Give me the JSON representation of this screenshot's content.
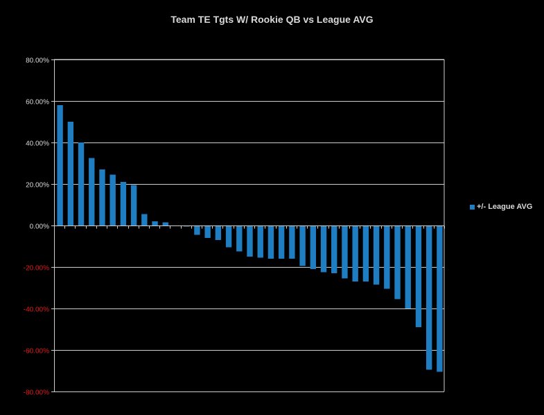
{
  "chart_data": {
    "type": "bar",
    "title": "Team TE Tgts W/ Rookie QB vs League AVG",
    "xlabel": "",
    "ylabel": "",
    "ylim": [
      -80,
      80
    ],
    "yticks": [
      80,
      60,
      40,
      20,
      0,
      -20,
      -40,
      -60,
      -80
    ],
    "ytick_labels": [
      "80.00%",
      "60.00%",
      "40.00%",
      "20.00%",
      "0.00%",
      "-20.00%",
      "-40.00%",
      "-60.00%",
      "-80.00%"
    ],
    "grid": true,
    "legend_position": "right",
    "series": [
      {
        "name": "+/- League AVG",
        "values": [
          58,
          50,
          40,
          32.5,
          27,
          24.5,
          21,
          19.5,
          5.5,
          2,
          1.5,
          0,
          -0.5,
          -4.5,
          -6,
          -7,
          -10.5,
          -12.5,
          -15,
          -15.5,
          -16,
          -16,
          -16,
          -19.5,
          -21,
          -22.5,
          -23,
          -25.5,
          -27,
          -27,
          -28.5,
          -30.5,
          -35.5,
          -40,
          -49,
          -69.5,
          -70.5
        ]
      }
    ],
    "colors": {
      "bar": "#1f7ec2",
      "background": "#000000",
      "gridline": "#cfcfcf",
      "text": "#d9d9d9",
      "negative_tick_text": "#e01a1a"
    }
  }
}
